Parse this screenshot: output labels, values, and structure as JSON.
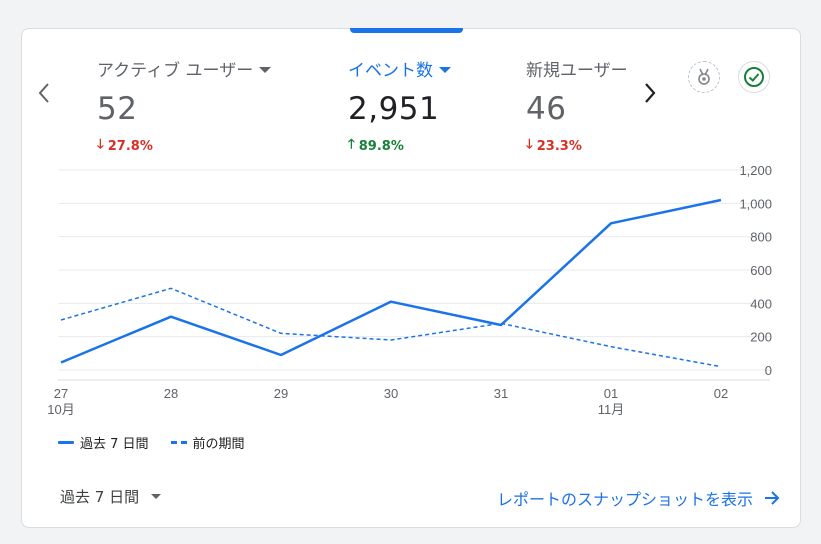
{
  "metrics": [
    {
      "label": "アクティブ ユーザー",
      "value": "52",
      "delta": "27.8%",
      "direction": "down"
    },
    {
      "label": "イベント数",
      "value": "2,951",
      "delta": "89.8%",
      "direction": "up"
    },
    {
      "label": "新規ユーザー",
      "value": "46",
      "delta": "23.3%",
      "direction": "down"
    }
  ],
  "legend": {
    "current": "過去 7 日間",
    "previous": "前の期間"
  },
  "footer": {
    "period_select": "過去 7 日間",
    "report_link": "レポートのスナップショットを表示"
  },
  "icons": {
    "prev": "chevron-left-icon",
    "next": "chevron-right-icon",
    "badge": "ribbon-badge-icon",
    "check": "check-circle-icon",
    "report_arrow": "arrow-right-icon"
  },
  "colors": {
    "accent": "#1a73e8",
    "down": "#d93025",
    "up": "#188038",
    "check": "#188038"
  },
  "chart_data": {
    "type": "line",
    "categories": [
      "27",
      "28",
      "29",
      "30",
      "31",
      "01",
      "02"
    ],
    "category_sublabels": {
      "0": "10月",
      "5": "11月"
    },
    "ylim": [
      0,
      1200
    ],
    "yticks": [
      "1,200",
      "1,000",
      "800",
      "600",
      "400",
      "200",
      "0"
    ],
    "series": [
      {
        "name": "過去 7 日間",
        "style": "solid",
        "values": [
          45,
          320,
          90,
          410,
          270,
          880,
          1020
        ]
      },
      {
        "name": "前の期間",
        "style": "dashed",
        "values": [
          300,
          490,
          220,
          180,
          280,
          140,
          20
        ]
      }
    ],
    "grid": true
  }
}
